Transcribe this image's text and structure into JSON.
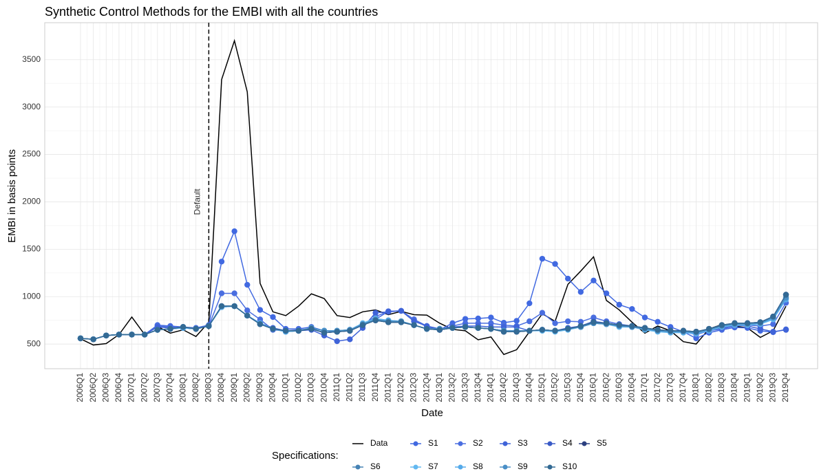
{
  "chart_data": {
    "type": "line",
    "title": "Synthetic Control Methods for the EMBI with all the countries",
    "x_label": "Date",
    "y_label": "EMBI in basis points",
    "legend_title": "Specifications:",
    "annotation": {
      "x": "2008Q3",
      "label": "Default"
    },
    "grid": true,
    "ylim": [
      240,
      3890
    ],
    "yticks": [
      500,
      1000,
      1500,
      2000,
      2500,
      3000,
      3500
    ],
    "categories": [
      "2006Q1",
      "2006Q2",
      "2006Q3",
      "2006Q4",
      "2007Q1",
      "2007Q2",
      "2007Q3",
      "2007Q4",
      "2008Q1",
      "2008Q2",
      "2008Q3",
      "2008Q4",
      "2009Q1",
      "2009Q2",
      "2009Q3",
      "2009Q4",
      "2010Q1",
      "2010Q2",
      "2010Q3",
      "2010Q4",
      "2011Q1",
      "2011Q2",
      "2011Q3",
      "2011Q4",
      "2012Q1",
      "2012Q2",
      "2012Q3",
      "2012Q4",
      "2013Q1",
      "2013Q2",
      "2013Q3",
      "2013Q4",
      "2014Q1",
      "2014Q2",
      "2014Q3",
      "2014Q4",
      "2015Q1",
      "2015Q2",
      "2015Q3",
      "2015Q4",
      "2016Q1",
      "2016Q2",
      "2016Q3",
      "2016Q4",
      "2017Q1",
      "2017Q2",
      "2017Q3",
      "2017Q4",
      "2018Q1",
      "2018Q2",
      "2018Q3",
      "2018Q4",
      "2019Q1",
      "2019Q2",
      "2019Q3",
      "2019Q4"
    ],
    "series": [
      {
        "name": "Data",
        "color": "#000000",
        "markers": false,
        "values": [
          555,
          490,
          505,
          600,
          785,
          600,
          685,
          615,
          650,
          580,
          730,
          3290,
          3700,
          3160,
          1140,
          840,
          800,
          900,
          1030,
          980,
          800,
          780,
          840,
          860,
          810,
          845,
          810,
          805,
          720,
          655,
          640,
          545,
          575,
          390,
          440,
          630,
          820,
          740,
          1130,
          1270,
          1420,
          960,
          860,
          730,
          615,
          690,
          640,
          525,
          500,
          660,
          705,
          690,
          670,
          570,
          640,
          900
        ]
      },
      {
        "name": "S1",
        "color": "#4169e1",
        "markers": true,
        "values": [
          560,
          550,
          590,
          600,
          600,
          600,
          700,
          690,
          680,
          670,
          700,
          1370,
          1690,
          1125,
          860,
          785,
          660,
          660,
          680,
          640,
          630,
          650,
          700,
          760,
          845,
          850,
          760,
          690,
          650,
          720,
          765,
          770,
          780,
          725,
          745,
          930,
          1400,
          1345,
          1190,
          1050,
          1170,
          1035,
          915,
          870,
          780,
          735,
          680,
          630,
          560,
          620,
          650,
          675,
          670,
          640,
          625,
          655
        ]
      },
      {
        "name": "S2",
        "color": "#4a6ee0",
        "markers": true,
        "values": [
          560,
          550,
          590,
          600,
          600,
          600,
          690,
          680,
          670,
          660,
          690,
          1035,
          1035,
          855,
          760,
          650,
          640,
          650,
          660,
          620,
          630,
          640,
          700,
          790,
          845,
          850,
          760,
          680,
          650,
          690,
          720,
          720,
          720,
          700,
          690,
          740,
          830,
          720,
          740,
          735,
          780,
          740,
          710,
          690,
          660,
          640,
          640,
          630,
          600,
          640,
          660,
          690,
          700,
          690,
          710,
          935
        ]
      },
      {
        "name": "S3",
        "color": "#3f63d8",
        "markers": true,
        "values": [
          560,
          550,
          590,
          600,
          600,
          600,
          680,
          670,
          670,
          660,
          690,
          900,
          900,
          800,
          720,
          670,
          640,
          640,
          650,
          590,
          530,
          550,
          670,
          830,
          840,
          850,
          740,
          690,
          660,
          680,
          690,
          690,
          680,
          680,
          680,
          640,
          650,
          640,
          670,
          690,
          740,
          720,
          700,
          690,
          660,
          640,
          640,
          630,
          610,
          640,
          670,
          700,
          690,
          660,
          630,
          650
        ]
      },
      {
        "name": "S4",
        "color": "#3a5bc7",
        "markers": true,
        "values": [
          560,
          550,
          590,
          600,
          600,
          600,
          650,
          660,
          680,
          660,
          690,
          900,
          900,
          800,
          710,
          660,
          640,
          640,
          660,
          620,
          630,
          640,
          700,
          750,
          730,
          730,
          700,
          660,
          650,
          670,
          680,
          670,
          660,
          630,
          630,
          640,
          650,
          640,
          660,
          690,
          730,
          720,
          700,
          690,
          670,
          650,
          640,
          640,
          630,
          660,
          700,
          720,
          720,
          730,
          790,
          1020
        ]
      },
      {
        "name": "S5",
        "color": "#2b3f7f",
        "markers": true,
        "values": [
          560,
          550,
          590,
          600,
          600,
          600,
          650,
          660,
          680,
          660,
          690,
          900,
          900,
          800,
          710,
          660,
          640,
          640,
          660,
          620,
          630,
          640,
          700,
          750,
          730,
          730,
          700,
          660,
          650,
          670,
          680,
          670,
          660,
          630,
          630,
          640,
          650,
          640,
          660,
          690,
          730,
          720,
          700,
          690,
          670,
          650,
          640,
          640,
          630,
          660,
          700,
          720,
          720,
          730,
          790,
          1020
        ]
      },
      {
        "name": "S6",
        "color": "#4682b4",
        "markers": true,
        "values": [
          560,
          550,
          590,
          600,
          600,
          600,
          650,
          660,
          670,
          660,
          690,
          890,
          900,
          800,
          720,
          660,
          630,
          640,
          670,
          640,
          640,
          650,
          710,
          760,
          740,
          740,
          700,
          660,
          660,
          670,
          680,
          670,
          660,
          640,
          640,
          640,
          650,
          640,
          660,
          680,
          720,
          710,
          690,
          680,
          660,
          640,
          630,
          630,
          620,
          650,
          690,
          710,
          710,
          720,
          780,
          980
        ]
      },
      {
        "name": "S7",
        "color": "#63b8f0",
        "markers": true,
        "values": [
          560,
          550,
          590,
          600,
          600,
          600,
          650,
          660,
          670,
          660,
          690,
          890,
          900,
          800,
          720,
          660,
          630,
          640,
          670,
          640,
          640,
          650,
          720,
          770,
          750,
          740,
          700,
          660,
          660,
          670,
          680,
          670,
          660,
          640,
          640,
          640,
          640,
          630,
          650,
          680,
          720,
          710,
          680,
          680,
          650,
          630,
          620,
          620,
          610,
          640,
          680,
          700,
          700,
          710,
          760,
          970
        ]
      },
      {
        "name": "S8",
        "color": "#55aaea",
        "markers": true,
        "values": [
          560,
          550,
          590,
          600,
          600,
          600,
          650,
          660,
          670,
          660,
          690,
          890,
          900,
          800,
          720,
          660,
          630,
          640,
          670,
          640,
          640,
          650,
          710,
          760,
          750,
          740,
          700,
          660,
          660,
          670,
          680,
          670,
          660,
          640,
          640,
          640,
          650,
          640,
          660,
          680,
          720,
          710,
          690,
          680,
          660,
          640,
          630,
          630,
          620,
          650,
          690,
          710,
          710,
          720,
          770,
          975
        ]
      },
      {
        "name": "S9",
        "color": "#4a8fc6",
        "markers": true,
        "values": [
          560,
          550,
          590,
          600,
          600,
          600,
          650,
          660,
          680,
          660,
          690,
          900,
          900,
          800,
          710,
          660,
          640,
          640,
          670,
          640,
          640,
          650,
          710,
          760,
          740,
          740,
          700,
          660,
          660,
          670,
          680,
          670,
          660,
          640,
          640,
          640,
          650,
          640,
          660,
          680,
          720,
          710,
          690,
          680,
          660,
          640,
          630,
          630,
          620,
          650,
          690,
          710,
          710,
          720,
          780,
          990
        ]
      },
      {
        "name": "S10",
        "color": "#336a94",
        "markers": true,
        "values": [
          560,
          550,
          590,
          600,
          600,
          600,
          650,
          660,
          680,
          660,
          690,
          900,
          900,
          800,
          710,
          660,
          640,
          640,
          660,
          620,
          630,
          640,
          700,
          750,
          730,
          730,
          700,
          660,
          650,
          670,
          680,
          670,
          660,
          630,
          630,
          640,
          650,
          640,
          660,
          690,
          730,
          720,
          700,
          690,
          670,
          650,
          640,
          640,
          630,
          660,
          700,
          720,
          720,
          730,
          790,
          1020
        ]
      }
    ]
  }
}
